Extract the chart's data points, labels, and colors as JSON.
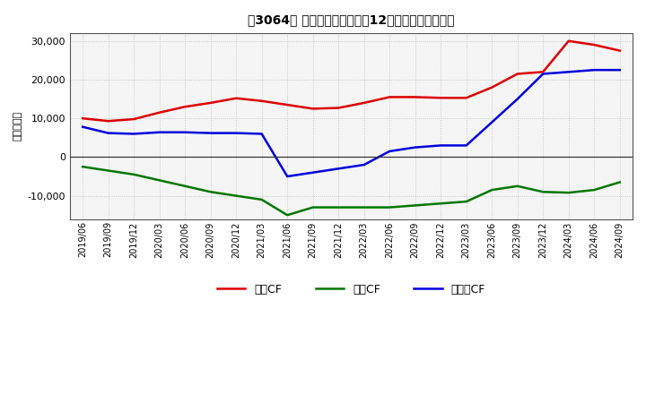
{
  "title": "［3064］ キャッシュフローの12か月移動合計の推移",
  "ylabel": "（百万円）",
  "background_color": "#ffffff",
  "plot_bg_color": "#f5f5f5",
  "grid_color": "#bbbbbb",
  "ylim": [
    -16000,
    32000
  ],
  "yticks": [
    -10000,
    0,
    10000,
    20000,
    30000
  ],
  "x_labels": [
    "2019/06",
    "2019/09",
    "2019/12",
    "2020/03",
    "2020/06",
    "2020/09",
    "2020/12",
    "2021/03",
    "2021/06",
    "2021/09",
    "2021/12",
    "2022/03",
    "2022/06",
    "2022/09",
    "2022/12",
    "2023/03",
    "2023/06",
    "2023/09",
    "2023/12",
    "2024/03",
    "2024/06",
    "2024/09"
  ],
  "eigyo_cf": [
    10000,
    9300,
    9800,
    11500,
    13000,
    14000,
    15200,
    14500,
    13500,
    12500,
    12700,
    14000,
    15500,
    15500,
    15300,
    15300,
    18000,
    21500,
    22000,
    30000,
    29000,
    27500
  ],
  "toshi_cf": [
    -2500,
    -3500,
    -4500,
    -6000,
    -7500,
    -9000,
    -10000,
    -11000,
    -15000,
    -13000,
    -13000,
    -13000,
    -13000,
    -12500,
    -12000,
    -11500,
    -8500,
    -7500,
    -9000,
    -9200,
    -8500,
    -6500
  ],
  "free_cf": [
    7800,
    6200,
    6000,
    6400,
    6400,
    6200,
    6200,
    6000,
    -5000,
    -4000,
    -3000,
    -2000,
    1500,
    2500,
    3000,
    3000,
    9000,
    15000,
    21500,
    22000,
    22500,
    22500
  ],
  "eigyo_color": "#dd0000",
  "toshi_color": "#007700",
  "free_color": "#0000dd",
  "legend_labels": [
    "営業CF",
    "投資CF",
    "フリーCF"
  ]
}
